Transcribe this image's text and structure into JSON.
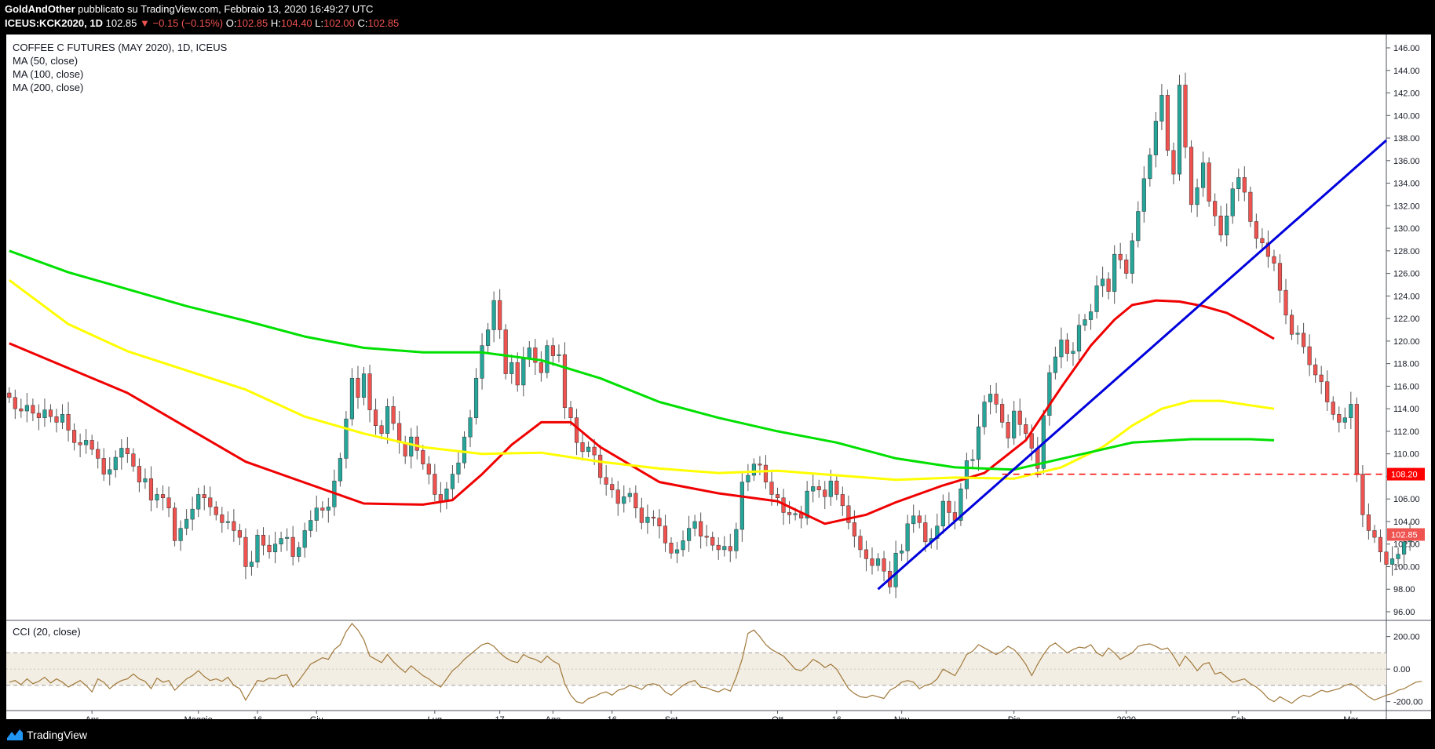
{
  "header": {
    "author": "GoldAndOther",
    "published": "pubblicato su TradingView.com, Febbraio 13, 2020 16:49:27 UTC",
    "symbol": "ICEUS:KCK2020, 1D",
    "last": "102.85",
    "change": "−0.15 (−0.15%)",
    "o_label": "O:",
    "o": "102.85",
    "h_label": "H:",
    "h": "104.40",
    "l_label": "L:",
    "l": "102.00",
    "c_label": "C:",
    "c": "102.85"
  },
  "legend": {
    "title": "COFFEE C FUTURES (MAY 2020), 1D, ICEUS",
    "ma50": "MA (50, close)",
    "ma100": "MA (100, close)",
    "ma200": "MA (200, close)",
    "cci": "CCI (20, close)"
  },
  "footer": {
    "brand": "TradingView"
  },
  "colors": {
    "up": "#26a69a",
    "down": "#ef5350",
    "ma50": "#f00000",
    "ma100": "#ffff00",
    "ma200": "#00e000",
    "trendline": "#0000dd",
    "level": "#ff0000",
    "cci": "#a0783a",
    "cci_band": "#f3eee3"
  },
  "chart_data": {
    "type": "candlestick",
    "title": "COFFEE C FUTURES (MAY 2020), 1D, ICEUS",
    "ylim": [
      96,
      146
    ],
    "y_ticks": [
      "146.00",
      "144.00",
      "142.00",
      "140.00",
      "138.00",
      "136.00",
      "134.00",
      "132.00",
      "130.00",
      "128.00",
      "126.00",
      "124.00",
      "122.00",
      "120.00",
      "118.00",
      "116.00",
      "114.00",
      "112.00",
      "110.00",
      "108.00",
      "106.00",
      "104.00",
      "102.00",
      "100.00",
      "98.00",
      "96.00"
    ],
    "x_ticks": [
      {
        "label": "Apr",
        "i": 14
      },
      {
        "label": "Maggio",
        "i": 32
      },
      {
        "label": "16",
        "i": 42
      },
      {
        "label": "Giu",
        "i": 52
      },
      {
        "label": "Lug",
        "i": 72
      },
      {
        "label": "17",
        "i": 83
      },
      {
        "label": "Ago",
        "i": 92
      },
      {
        "label": "16",
        "i": 102
      },
      {
        "label": "Set",
        "i": 112
      },
      {
        "label": "Ott",
        "i": 130
      },
      {
        "label": "16",
        "i": 140
      },
      {
        "label": "Nov",
        "i": 151
      },
      {
        "label": "Dic",
        "i": 170
      },
      {
        "label": "2020",
        "i": 189
      },
      {
        "label": "Feb",
        "i": 208
      },
      {
        "label": "Mar",
        "i": 227
      }
    ],
    "x_domain": [
      -0.5,
      233
    ],
    "candles_close": [
      115,
      114,
      113.8,
      114.3,
      113.6,
      113.2,
      113.9,
      113.3,
      112.8,
      113.5,
      112.1,
      111,
      110.8,
      111.2,
      110.4,
      109.6,
      108.2,
      108.6,
      109.7,
      110.5,
      110,
      108.9,
      107.5,
      107.8,
      105.9,
      106.4,
      106.1,
      105.2,
      102.3,
      103.4,
      104.2,
      105.1,
      106.4,
      106.1,
      105.3,
      104.6,
      103.9,
      104,
      103.2,
      102.6,
      100,
      100.4,
      102.8,
      101.9,
      101.3,
      102,
      102.5,
      102.6,
      100.9,
      101.7,
      103.2,
      104.1,
      105.2,
      105,
      105.3,
      107.6,
      109.6,
      113.1,
      116.7,
      115,
      117.1,
      113.9,
      112.5,
      111.8,
      114.2,
      112.7,
      111,
      109.8,
      111.5,
      110.3,
      109.1,
      108.2,
      106.4,
      105.8,
      106.9,
      108.2,
      109.2,
      111.5,
      113.2,
      116.7,
      119.6,
      121,
      123.6,
      121,
      117.1,
      118.1,
      116.1,
      118.4,
      119.4,
      118.1,
      117.2,
      119.6,
      118.7,
      118.8,
      114.1,
      113.2,
      111,
      110.2,
      110.6,
      109.9,
      107.9,
      107.3,
      106.8,
      105.6,
      106.2,
      106.5,
      105.2,
      103.9,
      104.4,
      104.3,
      103.6,
      102.1,
      101.2,
      101.5,
      102.3,
      103.4,
      104,
      102.7,
      102.6,
      101.9,
      101.5,
      101.8,
      101.4,
      103.3,
      107.5,
      108.1,
      109.1,
      109,
      107.5,
      106.4,
      106.1,
      104.8,
      104.6,
      104.7,
      104.3,
      106.7,
      107.1,
      106.8,
      106.2,
      107.6,
      106.4,
      105.4,
      103.9,
      102.7,
      101.5,
      100.7,
      100.1,
      100.7,
      99.6,
      98.2,
      101.2,
      101.4,
      103.8,
      104.5,
      103.9,
      102.2,
      102.5,
      103.6,
      105.8,
      104.8,
      104.1,
      106.9,
      109.4,
      109.5,
      112.4,
      114.6,
      115.3,
      114.4,
      112.8,
      111.4,
      113.8,
      112.6,
      111.8,
      110.5,
      108.7,
      113.4,
      117.2,
      118.6,
      120.1,
      118.9,
      119.1,
      121.4,
      121.9,
      122.6,
      124.9,
      125.5,
      124.4,
      127.7,
      127.2,
      126,
      128.9,
      131.5,
      134.4,
      136.5,
      139.5,
      141.8,
      136.9,
      134.8,
      142.7,
      137.2,
      132.1,
      133.6,
      135.8,
      132.4,
      131.1,
      129.4,
      131.1,
      133.5,
      134.5,
      133.2,
      130.6,
      129.1,
      128.7,
      127.5,
      126.9,
      124.5,
      122.3,
      120.6,
      120.7,
      119.5,
      117.9,
      117,
      116.4,
      114.6,
      113.5,
      112.8,
      113.2,
      114.4,
      108.2,
      104.6,
      103.2,
      102.6,
      101.3,
      100.2,
      100.7,
      101.1,
      102.2,
      102.9,
      102.85
    ],
    "series": [
      {
        "name": "MA (50, close)",
        "x": [
          0,
          20,
          40,
          60,
          70,
          75,
          80,
          85,
          90,
          95,
          100,
          110,
          120,
          130,
          138,
          145,
          150,
          158,
          165,
          172,
          178,
          183,
          187,
          190,
          194,
          198,
          202,
          206,
          210,
          214
        ],
        "values": [
          119.8,
          115.4,
          109.3,
          105.6,
          105.5,
          105.9,
          108.2,
          110.8,
          112.8,
          112.8,
          110.6,
          107.5,
          106.5,
          105.8,
          103.8,
          104.6,
          105.7,
          107.2,
          108.3,
          111.2,
          115.9,
          119.6,
          121.9,
          123.2,
          123.6,
          123.5,
          123.1,
          122.5,
          121.4,
          120.2
        ]
      },
      {
        "name": "MA (100, close)",
        "x": [
          0,
          10,
          20,
          30,
          40,
          50,
          60,
          70,
          80,
          90,
          100,
          110,
          120,
          130,
          140,
          150,
          160,
          170,
          178,
          185,
          190,
          195,
          200,
          205,
          210,
          214
        ],
        "values": [
          125.4,
          121.5,
          119.1,
          117.4,
          115.7,
          113.3,
          111.8,
          110.6,
          110.0,
          110.1,
          109.3,
          108.7,
          108.3,
          108.5,
          108.1,
          107.7,
          107.9,
          107.8,
          108.8,
          110.6,
          112.5,
          114.0,
          114.7,
          114.7,
          114.3,
          114.0
        ]
      },
      {
        "name": "MA (200, close)",
        "x": [
          0,
          10,
          20,
          30,
          40,
          50,
          60,
          70,
          80,
          90,
          100,
          110,
          120,
          130,
          140,
          150,
          160,
          170,
          180,
          190,
          200,
          210,
          214
        ],
        "values": [
          128.0,
          126.1,
          124.6,
          123.1,
          121.8,
          120.4,
          119.4,
          119.0,
          119.0,
          118.3,
          116.7,
          114.6,
          113.2,
          112.0,
          111.0,
          109.6,
          108.8,
          108.6,
          109.8,
          111.0,
          111.3,
          111.3,
          111.2
        ]
      }
    ],
    "trendline": {
      "x": [
        147,
        233
      ],
      "values": [
        98.0,
        137.8
      ]
    },
    "level": {
      "value": 108.2,
      "label": "108.20",
      "x_start": 168
    },
    "price_label": "102.85",
    "cci": {
      "name": "CCI (20, close)",
      "ylim": [
        -245,
        285
      ],
      "ticks": [
        "200.00",
        "0.00",
        "-200.00"
      ],
      "band": [
        100,
        -100
      ],
      "values": [
        -80,
        -70,
        -95,
        -60,
        -90,
        -75,
        -50,
        -85,
        -60,
        -80,
        -110,
        -90,
        -70,
        -100,
        -140,
        -60,
        -80,
        -120,
        -90,
        -70,
        -60,
        -30,
        -60,
        -75,
        -120,
        -55,
        -80,
        -70,
        -130,
        -95,
        -60,
        -40,
        -10,
        -45,
        -70,
        -60,
        -75,
        -50,
        -100,
        -120,
        -190,
        -130,
        -70,
        -75,
        -55,
        -60,
        -40,
        -35,
        -110,
        -70,
        -20,
        30,
        50,
        70,
        60,
        120,
        150,
        230,
        280,
        240,
        180,
        80,
        60,
        40,
        90,
        45,
        10,
        -20,
        20,
        -10,
        -40,
        -60,
        -90,
        -110,
        -60,
        -10,
        20,
        60,
        90,
        120,
        150,
        160,
        140,
        100,
        70,
        50,
        40,
        90,
        70,
        60,
        40,
        80,
        50,
        30,
        -90,
        -160,
        -200,
        -210,
        -180,
        -170,
        -150,
        -140,
        -160,
        -130,
        -120,
        -100,
        -110,
        -125,
        -95,
        -90,
        -100,
        -140,
        -160,
        -130,
        -100,
        -80,
        -70,
        -110,
        -115,
        -130,
        -140,
        -120,
        -135,
        -50,
        60,
        220,
        240,
        200,
        150,
        120,
        100,
        80,
        40,
        0,
        -10,
        20,
        60,
        40,
        10,
        30,
        0,
        -60,
        -120,
        -150,
        -170,
        -175,
        -160,
        -170,
        -180,
        -130,
        -110,
        -80,
        -70,
        -80,
        -120,
        -100,
        -90,
        -60,
        0,
        -20,
        -40,
        20,
        90,
        110,
        150,
        130,
        110,
        90,
        110,
        140,
        120,
        80,
        30,
        -40,
        30,
        90,
        140,
        160,
        130,
        100,
        120,
        135,
        130,
        150,
        100,
        80,
        130,
        100,
        60,
        80,
        100,
        140,
        150,
        155,
        140,
        120,
        130,
        80,
        20,
        80,
        40,
        -10,
        30,
        40,
        -30,
        -20,
        -50,
        -80,
        -70,
        -60,
        -90,
        -110,
        -140,
        -180,
        -200,
        -170,
        -190,
        -210,
        -180,
        -160,
        -170,
        -150,
        -130,
        -140,
        -130,
        -120,
        -100,
        -90,
        -110,
        -140,
        -170,
        -190,
        -175,
        -160,
        -150,
        -130,
        -120,
        -100,
        -80,
        -75
      ]
    }
  }
}
